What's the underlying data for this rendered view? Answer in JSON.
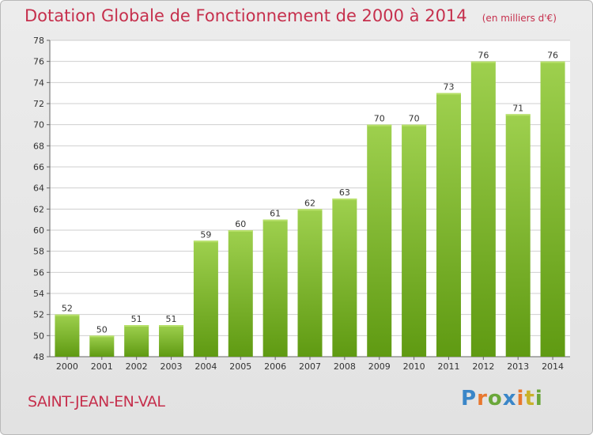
{
  "header": {
    "title": "Dotation Globale de Fonctionnement de 2000 à 2014",
    "subtitle": "(en milliers d'€)"
  },
  "footer": {
    "town": "SAINT-JEAN-EN-VAL",
    "logo_text": "Proxiti"
  },
  "colors": {
    "title": "#c6304d",
    "bar_top": "#9ed04e",
    "bar_bottom": "#5f9a12",
    "grid": "#cfcfcf"
  },
  "chart_data": {
    "type": "bar",
    "title": "Dotation Globale de Fonctionnement de 2000 à 2014",
    "subtitle": "(en milliers d'€)",
    "xlabel": "",
    "ylabel": "",
    "categories": [
      "2000",
      "2001",
      "2002",
      "2003",
      "2004",
      "2005",
      "2006",
      "2007",
      "2008",
      "2009",
      "2010",
      "2011",
      "2012",
      "2013",
      "2014"
    ],
    "values": [
      52,
      50,
      51,
      51,
      59,
      60,
      61,
      62,
      63,
      70,
      70,
      73,
      76,
      71,
      76
    ],
    "ylim": [
      48,
      78
    ],
    "yticks": [
      48,
      50,
      52,
      54,
      56,
      58,
      60,
      62,
      64,
      66,
      68,
      70,
      72,
      74,
      76,
      78
    ],
    "grid": true,
    "data_labels": true
  }
}
